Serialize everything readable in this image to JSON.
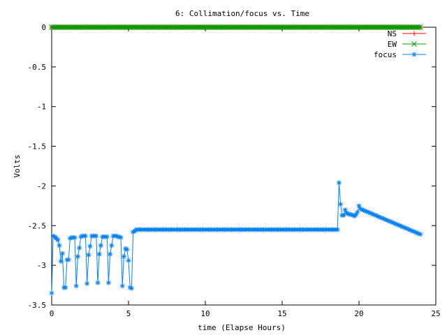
{
  "chart_data": {
    "type": "line",
    "title": "6: Collimation/focus vs. Time",
    "xlabel": "time (Elapse Hours)",
    "ylabel": "Volts",
    "xlim": [
      0,
      25
    ],
    "ylim": [
      -3.5,
      0
    ],
    "x_ticks": [
      0,
      5,
      10,
      15,
      20,
      25
    ],
    "y_ticks": [
      0,
      -0.5,
      -1,
      -1.5,
      -2,
      -2.5,
      -3,
      -3.5
    ],
    "grid": false,
    "legend_position": "top-right",
    "series": [
      {
        "name": "NS",
        "color": "#ff0000",
        "marker": "plus",
        "x_start": 0,
        "x_end": 24,
        "x_step": 0.1,
        "value": 0
      },
      {
        "name": "EW",
        "color": "#00a000",
        "marker": "cross",
        "x_start": 0,
        "x_end": 24,
        "x_step": 0.1,
        "value": 0
      },
      {
        "name": "focus",
        "color": "#0080ff",
        "marker": "star",
        "segments": [
          {
            "x": [
              0,
              0.1,
              0.2,
              0.3,
              0.4,
              0.5,
              0.6,
              0.7,
              0.8,
              0.9,
              1.0,
              1.1,
              1.2,
              1.3,
              1.4,
              1.5,
              1.6,
              1.7,
              1.8,
              1.9,
              2.0,
              2.1,
              2.2,
              2.3,
              2.4,
              2.5,
              2.6,
              2.7,
              2.8,
              2.9,
              3.0,
              3.1,
              3.2,
              3.3,
              3.4,
              3.5,
              3.6,
              3.7,
              3.8,
              3.9,
              4.0,
              4.1,
              4.2,
              4.3,
              4.4,
              4.5,
              4.6,
              4.7,
              4.8,
              4.9,
              5.0,
              5.1,
              5.2,
              5.3,
              5.4,
              5.5,
              5.6,
              5.7,
              5.8,
              5.9,
              6.0
            ],
            "y": [
              -3.35,
              -2.63,
              -2.64,
              -2.66,
              -2.68,
              -2.75,
              -2.95,
              -2.85,
              -3.28,
              -3.28,
              -2.93,
              -2.93,
              -2.66,
              -2.65,
              -2.65,
              -2.65,
              -3.26,
              -2.89,
              -2.78,
              -2.64,
              -2.63,
              -2.63,
              -2.63,
              -3.23,
              -2.87,
              -2.76,
              -2.63,
              -2.63,
              -2.63,
              -2.63,
              -3.22,
              -2.86,
              -2.75,
              -2.64,
              -2.64,
              -2.64,
              -2.64,
              -3.22,
              -2.86,
              -2.75,
              -2.63,
              -2.63,
              -2.63,
              -2.64,
              -2.64,
              -2.65,
              -3.26,
              -2.89,
              -2.79,
              -2.8,
              -2.94,
              -3.28,
              -3.29,
              -2.58,
              -2.57,
              -2.55,
              -2.55,
              -2.55,
              -2.55,
              -2.55,
              -2.55
            ]
          },
          {
            "x_start": 6.1,
            "x_end": 18.5,
            "x_step": 0.1,
            "value": -2.55
          },
          {
            "x": [
              18.6,
              18.7,
              18.8,
              18.9,
              19.0,
              19.1,
              19.2,
              19.3,
              19.4,
              19.5,
              19.6,
              19.7,
              19.8,
              19.9,
              20.0
            ],
            "y": [
              -2.55,
              -1.96,
              -2.23,
              -2.37,
              -2.37,
              -2.3,
              -2.34,
              -2.35,
              -2.36,
              -2.36,
              -2.37,
              -2.38,
              -2.36,
              -2.33,
              -2.25
            ]
          },
          {
            "x_start": 20.1,
            "x_end": 24.0,
            "x_step": 0.1,
            "y_start": -2.29,
            "y_end": -2.61
          }
        ]
      }
    ]
  }
}
